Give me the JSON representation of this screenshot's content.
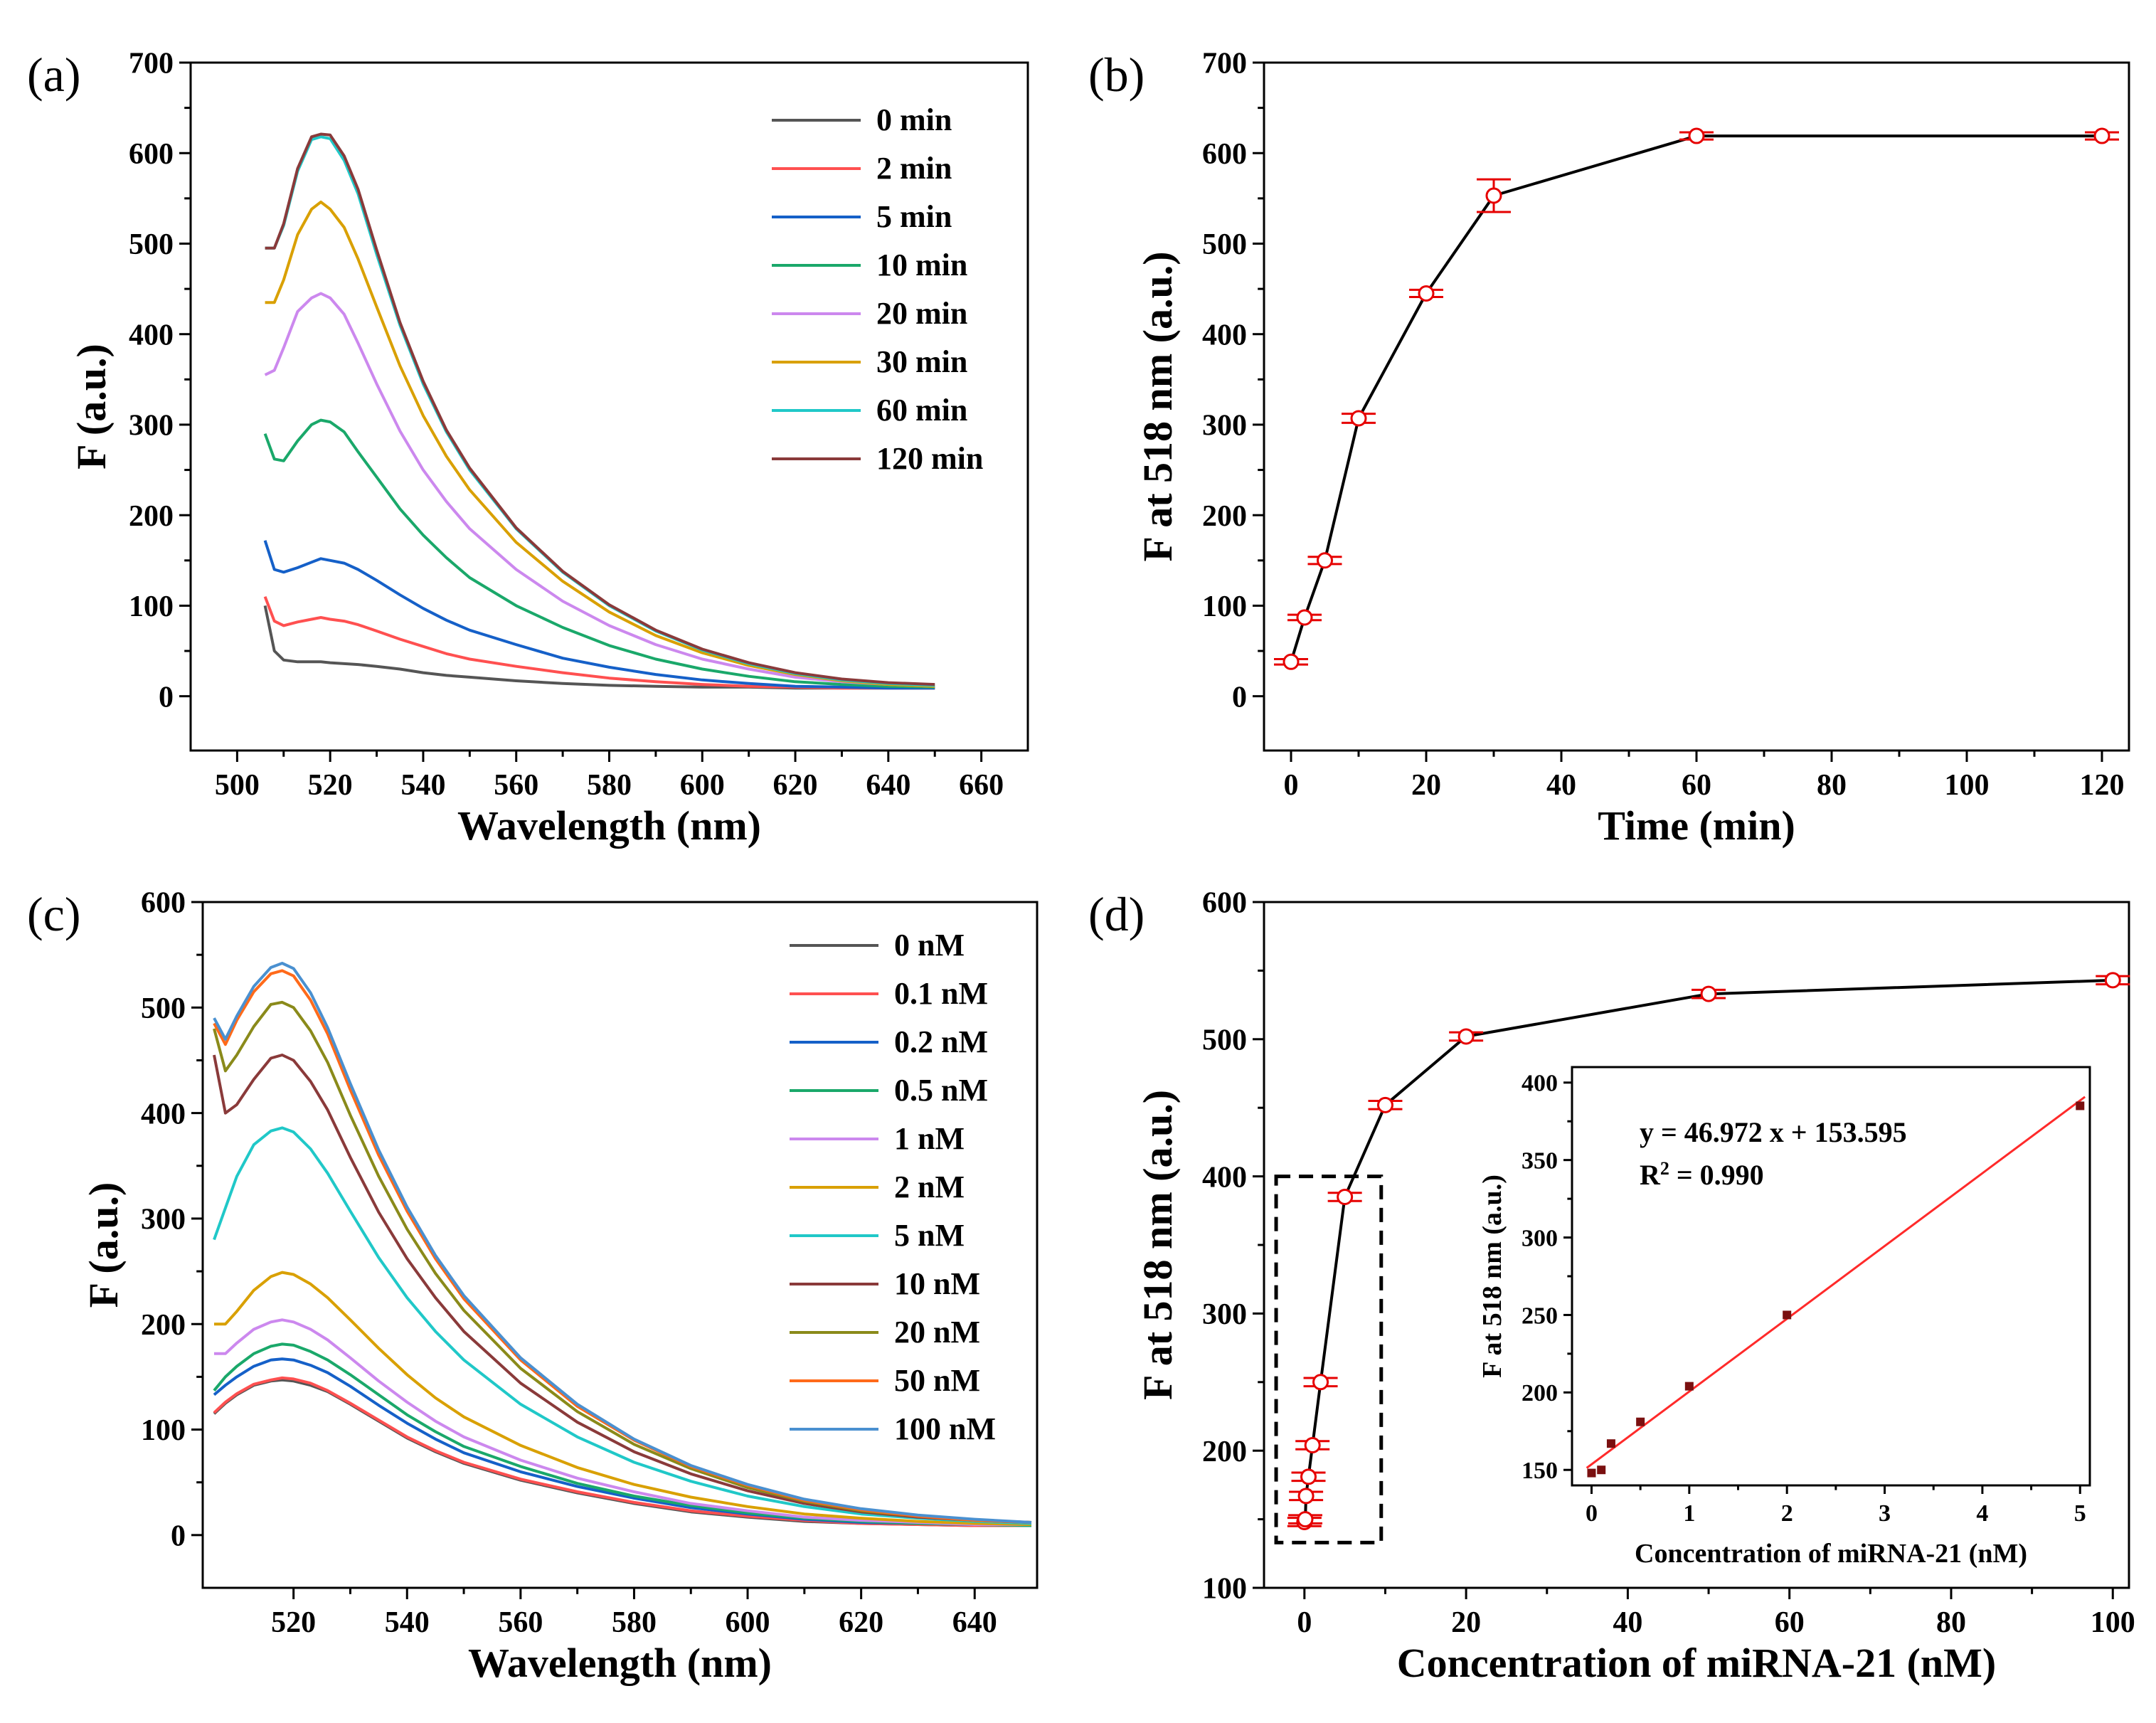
{
  "chart_data": [
    {
      "id": "a",
      "panel_label": "(a)",
      "type": "line",
      "xlabel": "Wavelength (nm)",
      "ylabel": "F (a.u.)",
      "xlim": [
        490,
        670
      ],
      "ylim": [
        -60,
        700
      ],
      "xticks": [
        500,
        520,
        540,
        560,
        580,
        600,
        620,
        640,
        660
      ],
      "yticks": [
        0,
        100,
        200,
        300,
        400,
        500,
        600,
        700
      ],
      "legend_position": "top-right",
      "x": [
        506,
        508,
        510,
        513,
        516,
        518,
        520,
        523,
        526,
        530,
        535,
        540,
        545,
        550,
        560,
        570,
        580,
        590,
        600,
        610,
        620,
        630,
        640,
        650
      ],
      "series": [
        {
          "name": "0 min",
          "color": "#555555",
          "values": [
            100,
            50,
            40,
            38,
            38,
            38,
            37,
            36,
            35,
            33,
            30,
            26,
            23,
            21,
            17,
            14,
            12,
            11,
            10,
            10,
            9,
            9,
            9,
            9
          ]
        },
        {
          "name": "2 min",
          "color": "#ff5050",
          "values": [
            110,
            83,
            78,
            82,
            85,
            87,
            85,
            83,
            79,
            72,
            63,
            55,
            47,
            41,
            33,
            26,
            20,
            16,
            13,
            11,
            10,
            9,
            9,
            9
          ]
        },
        {
          "name": "5 min",
          "color": "#1560c8",
          "values": [
            172,
            140,
            137,
            142,
            148,
            152,
            150,
            147,
            140,
            128,
            112,
            97,
            84,
            73,
            57,
            42,
            32,
            24,
            18,
            14,
            11,
            10,
            9,
            9
          ]
        },
        {
          "name": "10 min",
          "color": "#1aa86a",
          "values": [
            290,
            262,
            260,
            282,
            300,
            305,
            303,
            292,
            270,
            242,
            207,
            178,
            153,
            131,
            100,
            76,
            56,
            41,
            30,
            22,
            16,
            13,
            11,
            10
          ]
        },
        {
          "name": "20 min",
          "color": "#cc88ee",
          "values": [
            355,
            360,
            385,
            425,
            440,
            445,
            440,
            422,
            390,
            345,
            293,
            250,
            215,
            185,
            140,
            105,
            78,
            57,
            41,
            30,
            21,
            16,
            13,
            11
          ]
        },
        {
          "name": "30 min",
          "color": "#d9a000",
          "values": [
            435,
            435,
            460,
            510,
            538,
            546,
            538,
            518,
            483,
            430,
            365,
            310,
            265,
            228,
            170,
            127,
            93,
            67,
            48,
            34,
            24,
            17,
            13,
            11
          ]
        },
        {
          "name": "60 min",
          "color": "#20c8c8",
          "values": [
            495,
            495,
            520,
            580,
            615,
            618,
            616,
            592,
            555,
            488,
            410,
            345,
            292,
            250,
            185,
            137,
            100,
            72,
            51,
            36,
            25,
            18,
            14,
            12
          ]
        },
        {
          "name": "120 min",
          "color": "#8a3a3a",
          "values": [
            495,
            495,
            522,
            583,
            618,
            621,
            620,
            597,
            560,
            493,
            413,
            348,
            294,
            252,
            186,
            138,
            101,
            73,
            52,
            37,
            26,
            19,
            15,
            13
          ]
        }
      ]
    },
    {
      "id": "b",
      "panel_label": "(b)",
      "type": "line",
      "xlabel": "Time (min)",
      "ylabel": "F at 518 nm (a.u.)",
      "xlim": [
        -4,
        124
      ],
      "ylim": [
        -60,
        700
      ],
      "xticks": [
        0,
        20,
        40,
        60,
        80,
        100,
        120
      ],
      "yticks": [
        0,
        100,
        200,
        300,
        400,
        500,
        600,
        700
      ],
      "x": [
        0,
        2,
        5,
        10,
        20,
        30,
        60,
        120
      ],
      "values": [
        38,
        87,
        150,
        307,
        445,
        553,
        619,
        619
      ],
      "errors": [
        3,
        3,
        4,
        5,
        4,
        18,
        4,
        4
      ]
    },
    {
      "id": "c",
      "panel_label": "(c)",
      "type": "line",
      "xlabel": "Wavelength (nm)",
      "ylabel": "F (a.u.)",
      "xlim": [
        504,
        651
      ],
      "ylim": [
        -50,
        600
      ],
      "xticks": [
        520,
        540,
        560,
        580,
        600,
        620,
        640
      ],
      "yticks": [
        0,
        100,
        200,
        300,
        400,
        500,
        600
      ],
      "legend_position": "top-right",
      "x": [
        506,
        508,
        510,
        513,
        516,
        518,
        520,
        523,
        526,
        530,
        535,
        540,
        545,
        550,
        560,
        570,
        580,
        590,
        600,
        610,
        620,
        630,
        640,
        650
      ],
      "series": [
        {
          "name": "0 nM",
          "color": "#555555",
          "values": [
            115,
            125,
            133,
            142,
            146,
            147,
            146,
            142,
            136,
            124,
            108,
            92,
            79,
            68,
            52,
            40,
            30,
            22,
            17,
            13,
            11,
            10,
            9,
            9
          ]
        },
        {
          "name": "0.1 nM",
          "color": "#ff5050",
          "values": [
            116,
            126,
            134,
            143,
            147,
            149,
            148,
            144,
            137,
            125,
            109,
            93,
            80,
            69,
            53,
            41,
            31,
            23,
            18,
            14,
            11,
            10,
            9,
            9
          ]
        },
        {
          "name": "0.2 nM",
          "color": "#1560c8",
          "values": [
            133,
            142,
            150,
            160,
            166,
            167,
            166,
            161,
            154,
            141,
            123,
            106,
            91,
            78,
            60,
            46,
            35,
            26,
            20,
            15,
            12,
            11,
            10,
            9
          ]
        },
        {
          "name": "0.5 nM",
          "color": "#1aa86a",
          "values": [
            137,
            150,
            160,
            172,
            179,
            181,
            180,
            174,
            166,
            152,
            133,
            114,
            98,
            84,
            65,
            49,
            37,
            28,
            21,
            16,
            13,
            11,
            10,
            9
          ]
        },
        {
          "name": "1 nM",
          "color": "#cc88ee",
          "values": [
            172,
            172,
            182,
            195,
            202,
            204,
            202,
            195,
            185,
            168,
            146,
            126,
            108,
            93,
            71,
            54,
            41,
            30,
            23,
            17,
            14,
            12,
            10,
            10
          ]
        },
        {
          "name": "2 nM",
          "color": "#d9a000",
          "values": [
            200,
            200,
            212,
            232,
            245,
            249,
            247,
            238,
            225,
            204,
            177,
            152,
            130,
            112,
            85,
            64,
            48,
            36,
            27,
            20,
            16,
            13,
            11,
            10
          ]
        },
        {
          "name": "5 nM",
          "color": "#20c8c8",
          "values": [
            280,
            310,
            340,
            370,
            383,
            386,
            382,
            366,
            343,
            307,
            263,
            225,
            193,
            166,
            124,
            93,
            69,
            51,
            37,
            27,
            20,
            16,
            13,
            11
          ]
        },
        {
          "name": "10 nM",
          "color": "#8a3a3a",
          "values": [
            455,
            400,
            408,
            432,
            452,
            455,
            450,
            430,
            403,
            358,
            306,
            262,
            225,
            193,
            144,
            107,
            79,
            58,
            42,
            30,
            22,
            17,
            14,
            12
          ]
        },
        {
          "name": "20 nM",
          "color": "#8a8a1a",
          "values": [
            480,
            440,
            455,
            482,
            503,
            505,
            500,
            478,
            448,
            398,
            340,
            290,
            248,
            213,
            158,
            117,
            86,
            63,
            45,
            32,
            23,
            18,
            14,
            12
          ]
        },
        {
          "name": "50 nM",
          "color": "#ff6a1a",
          "values": [
            485,
            465,
            488,
            515,
            532,
            535,
            530,
            507,
            475,
            422,
            360,
            307,
            262,
            224,
            166,
            122,
            90,
            65,
            47,
            33,
            24,
            18,
            14,
            12
          ]
        },
        {
          "name": "100 nM",
          "color": "#4a90d0",
          "values": [
            490,
            470,
            492,
            520,
            538,
            542,
            537,
            514,
            481,
            428,
            365,
            311,
            265,
            227,
            168,
            124,
            91,
            66,
            48,
            34,
            25,
            19,
            15,
            12
          ]
        }
      ]
    },
    {
      "id": "d",
      "panel_label": "(d)",
      "type": "line",
      "xlabel": "Concentration of miRNA-21 (nM)",
      "ylabel": "F at 518 nm (a.u.)",
      "xlim": [
        -5,
        102
      ],
      "ylim": [
        100,
        600
      ],
      "xticks": [
        0,
        20,
        40,
        60,
        80,
        100
      ],
      "yticks": [
        100,
        200,
        300,
        400,
        500,
        600
      ],
      "x": [
        0,
        0.1,
        0.2,
        0.5,
        1,
        2,
        5,
        10,
        20,
        50,
        100
      ],
      "values": [
        148,
        150,
        167,
        181,
        204,
        250,
        385,
        452,
        502,
        533,
        543
      ],
      "errors": [
        3,
        3,
        3,
        3,
        3,
        3,
        3,
        3,
        3,
        3,
        3
      ],
      "highlight_box": {
        "x_range": [
          -3.5,
          9.5
        ],
        "y_range": [
          133,
          400
        ]
      }
    },
    {
      "id": "d-inset",
      "type": "scatter",
      "xlabel": "Concentration of miRNA-21 (nM)",
      "ylabel": "F at 518 nm (a.u.)",
      "xlim": [
        -0.2,
        5.1
      ],
      "ylim": [
        140,
        410
      ],
      "xticks": [
        0,
        1,
        2,
        3,
        4,
        5
      ],
      "yticks": [
        150,
        200,
        250,
        300,
        350,
        400
      ],
      "x": [
        0,
        0.1,
        0.2,
        0.5,
        1,
        2,
        5
      ],
      "values": [
        148,
        150,
        167,
        181,
        204,
        250,
        385
      ],
      "fit": {
        "slope": 46.972,
        "intercept": 153.595,
        "equation": "y = 46.972 x + 153.595",
        "r2_prefix": "R",
        "r2_sup": "2",
        "r2_value": " = 0.990"
      }
    }
  ]
}
